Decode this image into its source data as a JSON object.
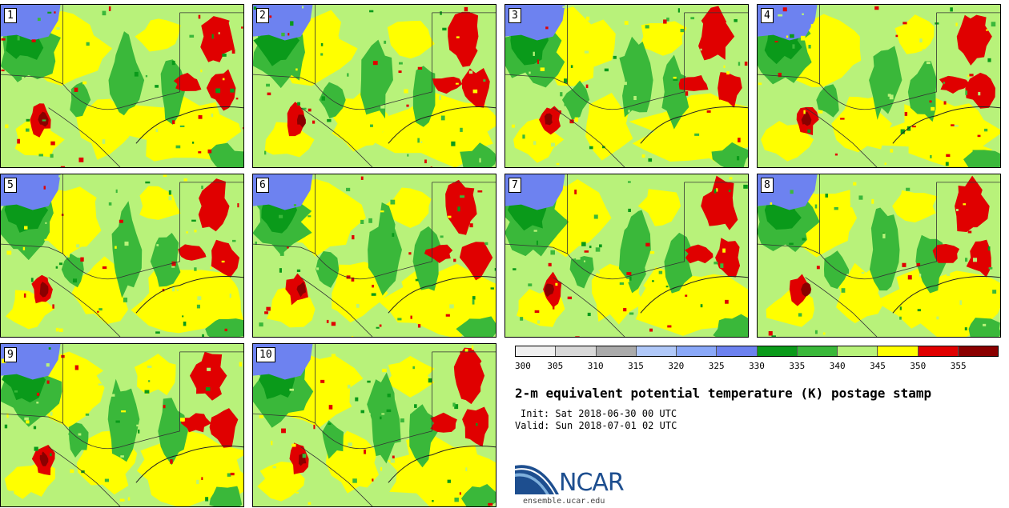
{
  "members": [
    "1",
    "2",
    "3",
    "4",
    "5",
    "6",
    "7",
    "8",
    "9",
    "10"
  ],
  "colorbar": {
    "colors": [
      "#f0f0f0",
      "#d8d8d8",
      "#aaaaaa",
      "#b0c8f8",
      "#8aa8f8",
      "#6d82f0",
      "#0a9a1a",
      "#3ab83a",
      "#b8f27a",
      "#ffff00",
      "#e00000",
      "#8a0000"
    ],
    "ticks": [
      "300",
      "305",
      "310",
      "315",
      "320",
      "325",
      "330",
      "335",
      "340",
      "345",
      "350",
      "355"
    ]
  },
  "title": "2-m equivalent potential temperature (K) postage stamp",
  "init": "Init: Sat 2018-06-30 00 UTC",
  "valid": "Valid: Sun 2018-07-01 02 UTC",
  "logo": {
    "text": "NCAR",
    "site": "ensemble.ucar.edu",
    "color": "#1d4e8f"
  }
}
